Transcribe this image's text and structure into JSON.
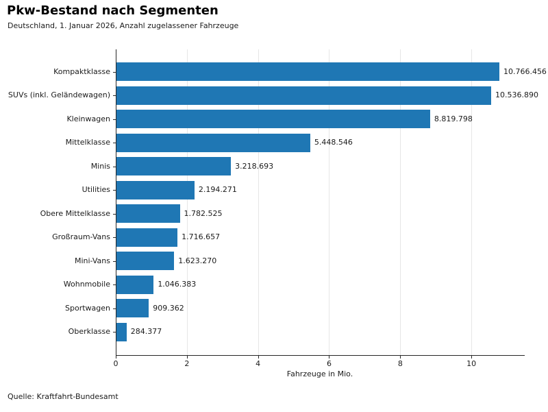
{
  "header": {
    "title": "Pkw-Bestand nach Segmenten",
    "subtitle": "Deutschland, 1. Januar 2026, Anzahl zugelassener Fahrzeuge"
  },
  "footer": {
    "source": "Quelle: Kraftfahrt-Bundesamt"
  },
  "chart_data": {
    "type": "bar",
    "orientation": "horizontal",
    "title": "Pkw-Bestand nach Segmenten",
    "subtitle": "Deutschland, 1. Januar 2026, Anzahl zugelassener Fahrzeuge",
    "categories": [
      "Kompaktklasse",
      "SUVs (inkl. Geländewagen)",
      "Kleinwagen",
      "Mittelklasse",
      "Minis",
      "Utilities",
      "Obere Mittelklasse",
      "Großraum-Vans",
      "Mini-Vans",
      "Wohnmobile",
      "Sportwagen",
      "Oberklasse"
    ],
    "values": [
      10766456,
      10536890,
      8819798,
      5448546,
      3218693,
      2194271,
      1782525,
      1716657,
      1623270,
      1046383,
      909362,
      284377
    ],
    "value_labels": [
      "10.766.456",
      "10.536.890",
      "8.819.798",
      "5.448.546",
      "3.218.693",
      "2.194.271",
      "1.782.525",
      "1.716.657",
      "1.623.270",
      "1.046.383",
      "909.362",
      "284.377"
    ],
    "xlabel": "Fahrzeuge in Mio.",
    "xlim": [
      0,
      11.48
    ],
    "xticks": [
      0,
      2,
      4,
      6,
      8,
      10
    ],
    "xtick_labels": [
      "0",
      "2",
      "4",
      "6",
      "8",
      "10"
    ],
    "grid": "vertical",
    "legend": "none",
    "bar_color": "#1f77b4",
    "source": "Quelle: Kraftfahrt-Bundesamt"
  }
}
